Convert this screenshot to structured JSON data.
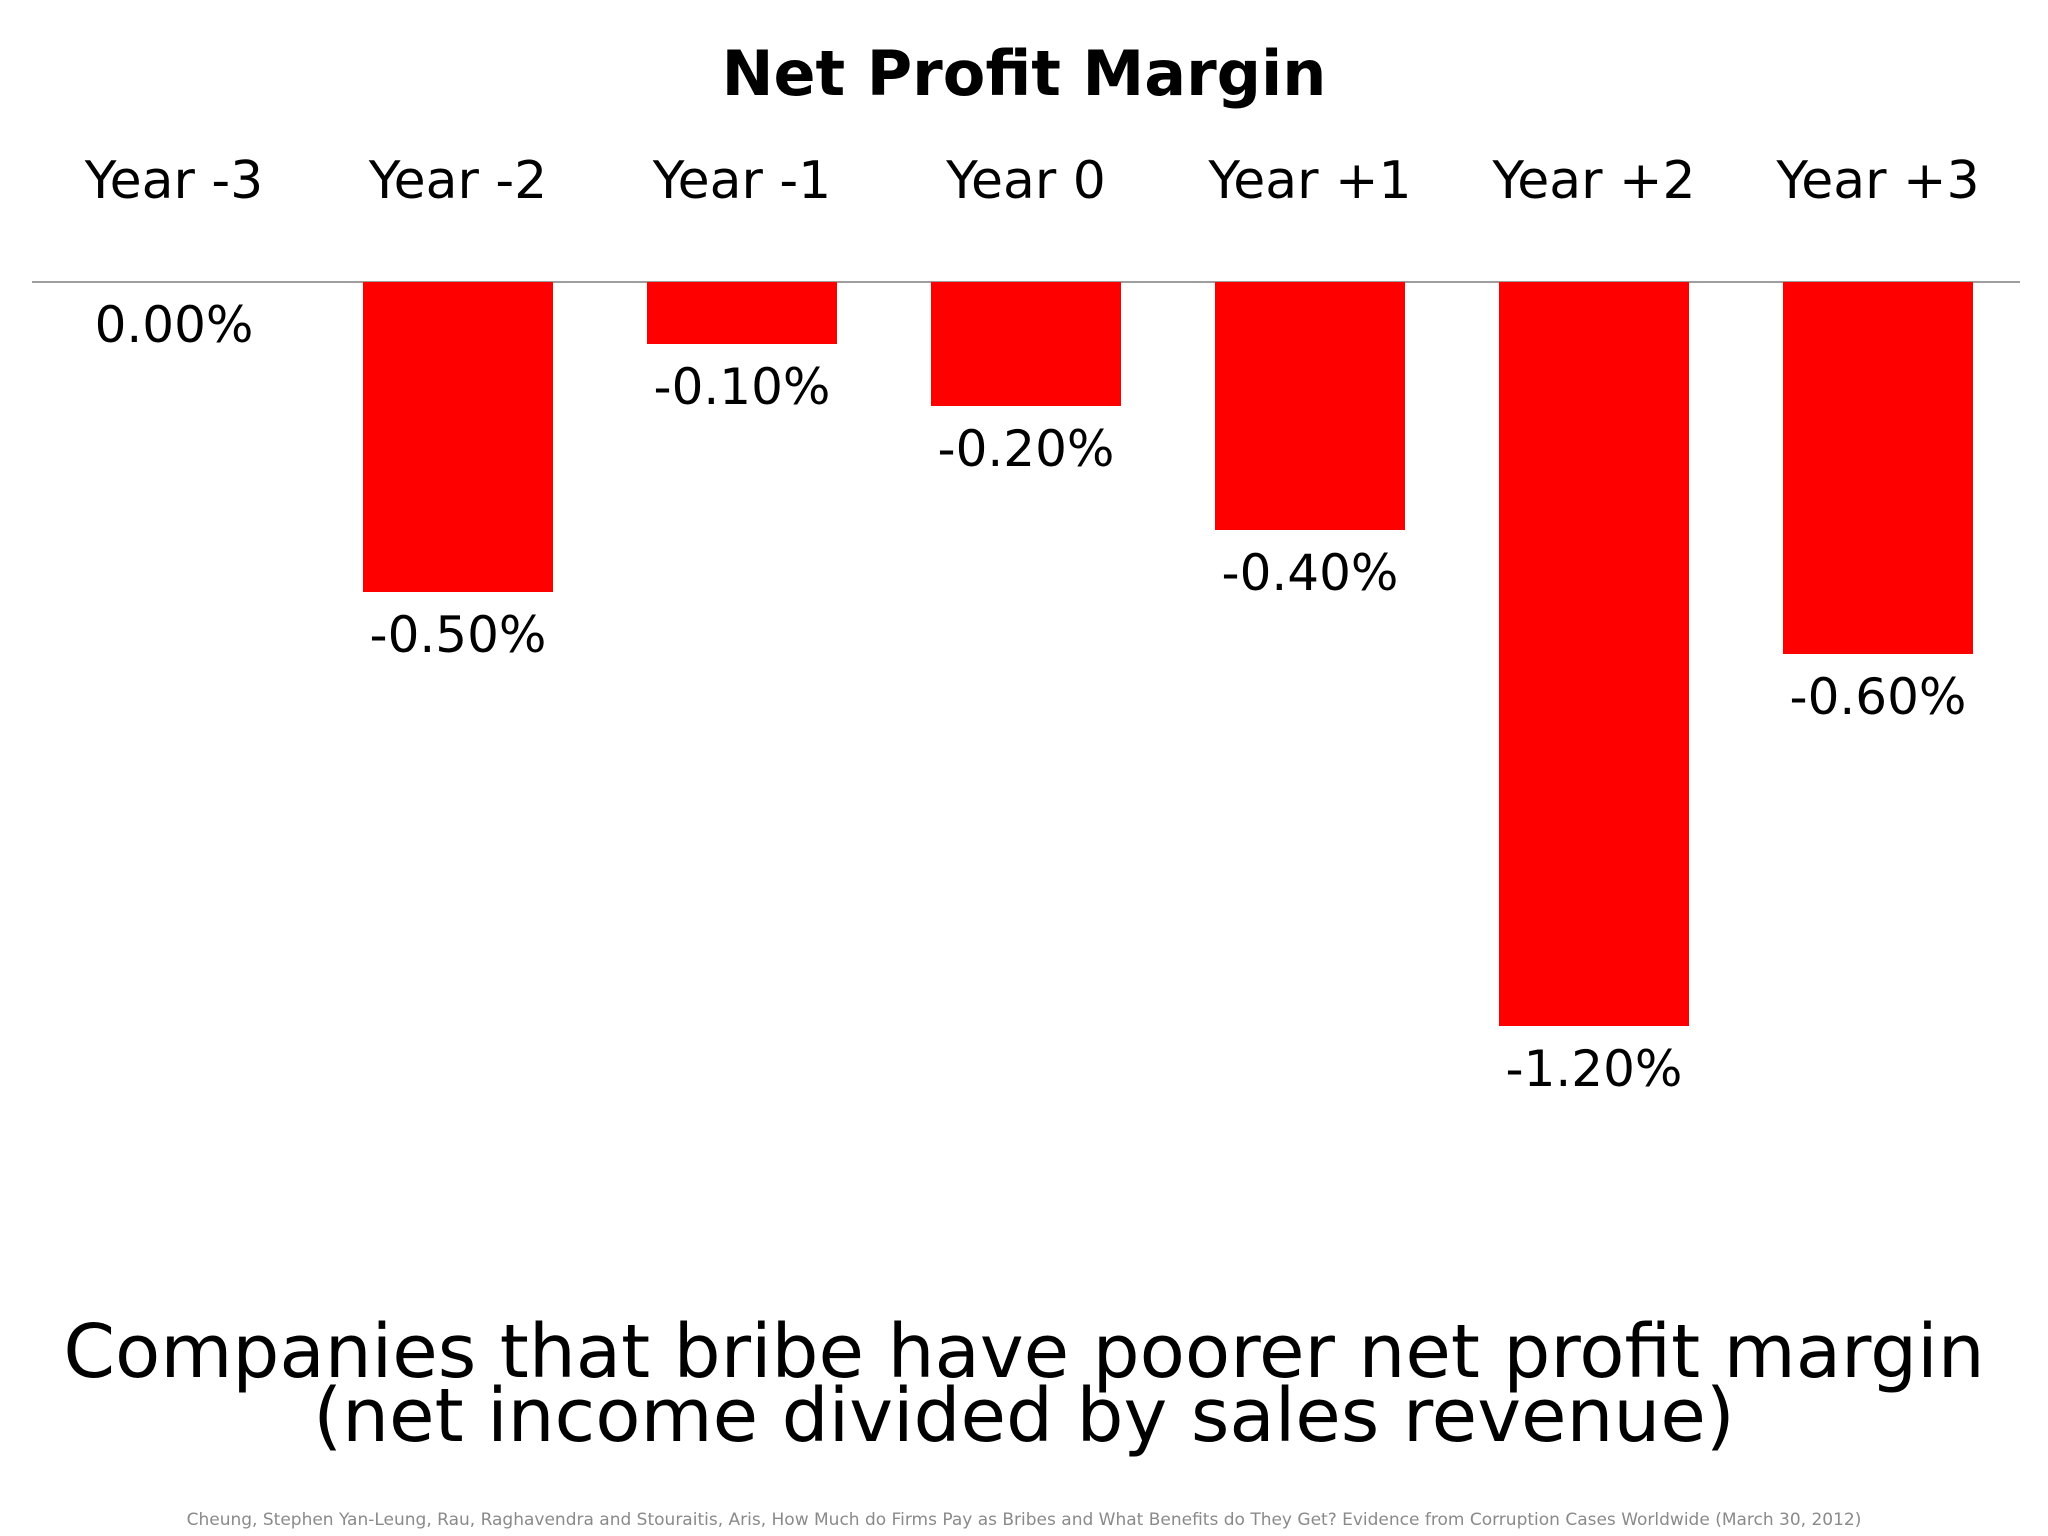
{
  "chart_data": {
    "type": "bar",
    "title": "Net Profit Margin",
    "categories": [
      "Year -3",
      "Year -2",
      "Year -1",
      "Year 0",
      "Year +1",
      "Year +2",
      "Year +3"
    ],
    "values": [
      0.0,
      -0.5,
      -0.1,
      -0.2,
      -0.4,
      -1.2,
      -0.6
    ],
    "data_labels": [
      "0.00%",
      "-0.50%",
      "-0.10%",
      "-0.20%",
      "-0.40%",
      "-1.20%",
      "-0.60%"
    ],
    "unit": "%",
    "xlabel": "",
    "ylabel": "",
    "ylim": [
      -1.2,
      0
    ],
    "grid": false,
    "legend": "none",
    "category_axis_position": "top",
    "bar_color": "#ff0000",
    "axis_color": "#7f7f7f"
  },
  "caption": {
    "line1": "Companies that bribe have poorer net profit margin",
    "line2": "(net income divided by sales revenue)"
  },
  "source": "Cheung, Stephen Yan-Leung, Rau, Raghavendra and Stouraitis, Aris, How Much do Firms Pay as Bribes and What Benefits do They Get? Evidence from Corruption Cases Worldwide (March 30, 2012)"
}
